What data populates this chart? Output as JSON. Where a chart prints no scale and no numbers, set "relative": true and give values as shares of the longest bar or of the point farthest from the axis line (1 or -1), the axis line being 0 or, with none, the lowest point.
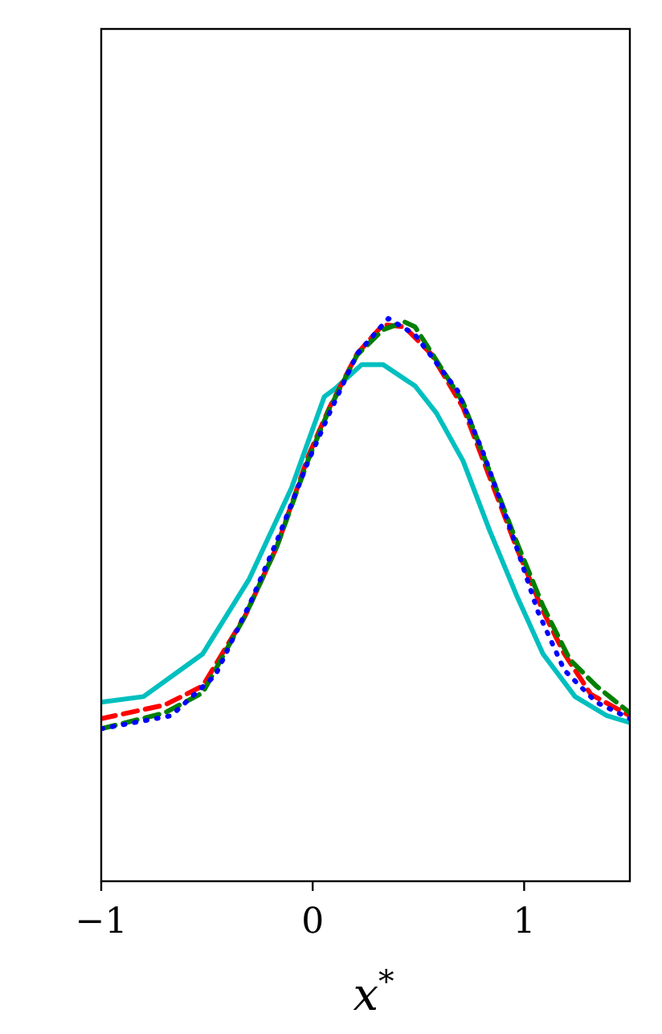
{
  "chart_data": {
    "type": "line",
    "relative": true,
    "xlabel": "x$^{*}$",
    "xlim": [
      -1,
      1.5
    ],
    "xticks": [
      {
        "value": -1,
        "label": "−1"
      },
      0,
      1
    ],
    "tick_labels": "x",
    "series": [
      {
        "color": "#00bfbf",
        "line_style": "solid",
        "x": [
          -1,
          -0.8,
          -0.52,
          -0.3,
          -0.1,
          0.055,
          0.106,
          0.232,
          0.333,
          0.484,
          0.585,
          0.711,
          0.837,
          0.963,
          1.089,
          1.241,
          1.392,
          1.5
        ],
        "values": [
          0.318,
          0.328,
          0.404,
          0.537,
          0.699,
          0.861,
          0.875,
          0.918,
          0.918,
          0.88,
          0.832,
          0.747,
          0.623,
          0.509,
          0.404,
          0.328,
          0.294,
          0.282
        ]
      },
      {
        "color": "#ff0000",
        "line_style": "dashed",
        "x": [
          -1,
          -0.7,
          -0.52,
          -0.32,
          -0.17,
          -0.02,
          0.08,
          0.21,
          0.333,
          0.433,
          0.56,
          0.711,
          0.837,
          0.963,
          1.089,
          1.19,
          1.316,
          1.5
        ],
        "values": [
          0.289,
          0.313,
          0.347,
          0.471,
          0.594,
          0.756,
          0.842,
          0.937,
          0.989,
          0.985,
          0.937,
          0.842,
          0.718,
          0.594,
          0.48,
          0.404,
          0.332,
          0.294
        ]
      },
      {
        "color": "#008000",
        "line_style": "dashed",
        "x": [
          -1,
          -0.7,
          -0.52,
          -0.32,
          -0.17,
          -0.02,
          0.08,
          0.21,
          0.333,
          0.433,
          0.484,
          0.711,
          0.837,
          0.963,
          1.089,
          1.216,
          1.341,
          1.5
        ],
        "values": [
          0.271,
          0.299,
          0.335,
          0.471,
          0.594,
          0.75,
          0.84,
          0.935,
          0.98,
          0.994,
          0.985,
          0.851,
          0.728,
          0.604,
          0.489,
          0.394,
          0.347,
          0.299
        ]
      },
      {
        "color": "#0000ff",
        "line_style": "dotted",
        "x": [
          -1,
          -0.67,
          -0.46,
          -0.29,
          -0.17,
          -0.02,
          0.08,
          0.21,
          0.358,
          0.484,
          0.686,
          0.812,
          0.938,
          1.064,
          1.19,
          1.341,
          1.5
        ],
        "values": [
          0.271,
          0.294,
          0.366,
          0.499,
          0.604,
          0.747,
          0.832,
          0.937,
          1.0,
          0.971,
          0.871,
          0.756,
          0.623,
          0.48,
          0.375,
          0.318,
          0.289
        ]
      }
    ]
  }
}
